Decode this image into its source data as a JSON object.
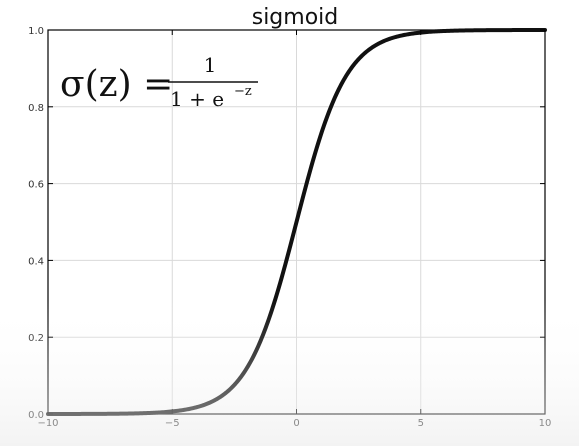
{
  "chart_data": {
    "type": "line",
    "title": "sigmoid",
    "xlabel": "",
    "ylabel": "",
    "xlim": [
      -10,
      10
    ],
    "ylim": [
      0,
      1
    ],
    "x_ticks": [
      "−10",
      "−5",
      "0",
      "5",
      "10"
    ],
    "y_ticks": [
      "0.0",
      "0.2",
      "0.4",
      "0.6",
      "0.8",
      "1.0"
    ],
    "grid": true,
    "function": "sigmoid",
    "series": [
      {
        "x": [
          -10,
          -8,
          -6,
          -5,
          -4,
          -3,
          -2,
          -1,
          0,
          1,
          2,
          3,
          4,
          5,
          6,
          8,
          10
        ],
        "y": [
          5e-05,
          0.0003,
          0.0025,
          0.0067,
          0.018,
          0.047,
          0.119,
          0.269,
          0.5,
          0.731,
          0.881,
          0.953,
          0.982,
          0.9933,
          0.9975,
          0.9997,
          0.99995
        ],
        "color": "#111111"
      }
    ],
    "annotation": {
      "lhs": "σ(z) =",
      "numerator": "1",
      "denominator_base": "1 + e",
      "denominator_exponent": "−z"
    }
  }
}
